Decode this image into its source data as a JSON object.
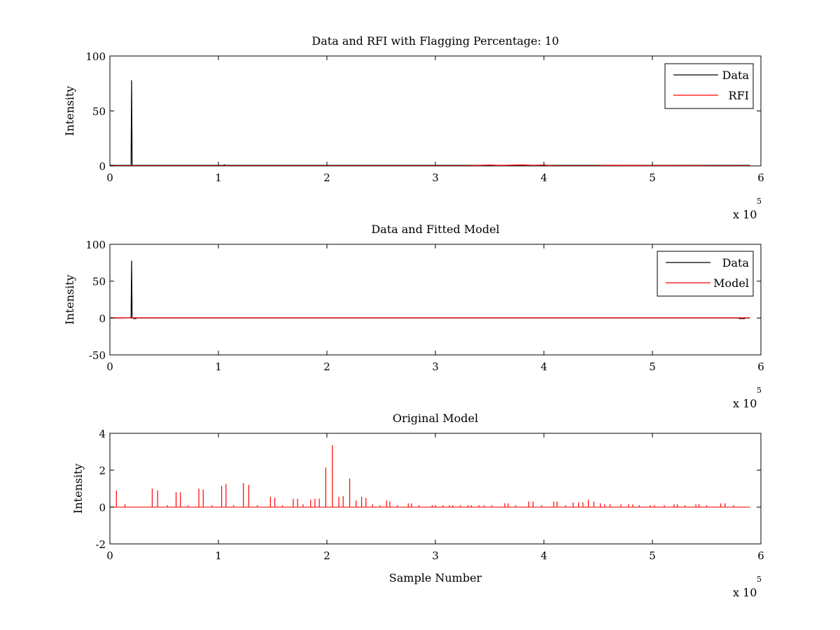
{
  "chart_data": [
    {
      "type": "line",
      "title": "Data and RFI with Flagging Percentage: 10",
      "xlabel": "",
      "ylabel": "Intensity",
      "xlim": [
        0,
        600000
      ],
      "ylim": [
        0,
        100
      ],
      "xticks": [
        0,
        100000,
        200000,
        300000,
        400000,
        500000,
        600000
      ],
      "xtick_labels": [
        "0",
        "1",
        "2",
        "3",
        "4",
        "5",
        "6"
      ],
      "yticks": [
        0,
        50,
        100
      ],
      "ytick_labels": [
        "0",
        "50",
        "100"
      ],
      "x_multiplier": {
        "base": "x 10",
        "exponent": "5"
      },
      "grid": false,
      "legend": "top-right",
      "series": [
        {
          "name": "Data",
          "color": "#000000",
          "x": [
            0,
            19000,
            19500,
            20000,
            20500,
            21000,
            105000,
            105500,
            106000,
            590000
          ],
          "y": [
            0.5,
            0.5,
            0.5,
            78,
            0.5,
            0.5,
            0.5,
            1.0,
            0.5,
            0.5
          ]
        },
        {
          "name": "RFI",
          "color": "#ff0000",
          "x": [
            0,
            330000,
            340000,
            350000,
            360000,
            370000,
            380000,
            390000,
            400000,
            410000,
            450000,
            460000,
            470000,
            590000
          ],
          "y": [
            0,
            0,
            0.5,
            0.8,
            0.4,
            0.7,
            0.9,
            0.5,
            0.8,
            0,
            0,
            0.6,
            0.4,
            0
          ]
        }
      ]
    },
    {
      "type": "line",
      "title": "Data and Fitted Model",
      "xlabel": "",
      "ylabel": "Intensity",
      "xlim": [
        0,
        600000
      ],
      "ylim": [
        -50,
        100
      ],
      "xticks": [
        0,
        100000,
        200000,
        300000,
        400000,
        500000,
        600000
      ],
      "xtick_labels": [
        "0",
        "1",
        "2",
        "3",
        "4",
        "5",
        "6"
      ],
      "yticks": [
        -50,
        0,
        50,
        100
      ],
      "ytick_labels": [
        "-50",
        "0",
        "50",
        "100"
      ],
      "x_multiplier": {
        "base": "x 10",
        "exponent": "5"
      },
      "grid": false,
      "legend": "top-right",
      "series": [
        {
          "name": "Data",
          "color": "#000000",
          "x": [
            0,
            12000,
            12000,
            19000,
            19500,
            20000,
            20500,
            21000,
            22000,
            24000,
            24000,
            580000,
            580000,
            585000,
            585000,
            590000
          ],
          "y": [
            0,
            0,
            0.3,
            0.3,
            0,
            78,
            0,
            0.3,
            -0.8,
            -0.8,
            0,
            0,
            -0.8,
            -0.8,
            0,
            0
          ]
        },
        {
          "name": "Model",
          "color": "#ff0000",
          "x": [
            0,
            590000
          ],
          "y": [
            0.3,
            0.3
          ]
        }
      ]
    },
    {
      "type": "line",
      "title": "Original Model",
      "xlabel": "Sample Number",
      "ylabel": "Intensity",
      "xlim": [
        0,
        600000
      ],
      "ylim": [
        -2,
        4
      ],
      "xticks": [
        0,
        100000,
        200000,
        300000,
        400000,
        500000,
        600000
      ],
      "xtick_labels": [
        "0",
        "1",
        "2",
        "3",
        "4",
        "5",
        "6"
      ],
      "yticks": [
        -2,
        0,
        2,
        4
      ],
      "ytick_labels": [
        "-2",
        "0",
        "2",
        "4"
      ],
      "x_multiplier": {
        "base": "x 10",
        "exponent": "5"
      },
      "grid": false,
      "legend": "none",
      "series": [
        {
          "color": "#ff0000",
          "line_x": [
            0,
            590000
          ],
          "peaks_x": [
            6000,
            14000,
            39000,
            44000,
            53000,
            61000,
            65000,
            72000,
            82000,
            86000,
            94000,
            103000,
            107000,
            114000,
            123000,
            128000,
            136000,
            148000,
            152000,
            159000,
            169000,
            173000,
            178000,
            185000,
            189000,
            193000,
            199000,
            205000,
            211000,
            215000,
            221000,
            227000,
            232000,
            236000,
            242000,
            249000,
            255000,
            258000,
            265000,
            275000,
            278000,
            285000,
            297000,
            300000,
            307000,
            313000,
            316000,
            323000,
            330000,
            333000,
            340000,
            345000,
            352000,
            364000,
            367000,
            374000,
            386000,
            390000,
            398000,
            409000,
            412000,
            420000,
            427000,
            432000,
            436000,
            441000,
            446000,
            452000,
            456000,
            461000,
            471000,
            478000,
            482000,
            488000,
            498000,
            502000,
            511000,
            520000,
            523000,
            530000,
            540000,
            543000,
            550000,
            563000,
            567000,
            575000
          ],
          "peaks_y": [
            0.9,
            0.15,
            1.0,
            0.9,
            0.1,
            0.8,
            0.8,
            0.1,
            1.0,
            0.95,
            0.1,
            1.15,
            1.25,
            0.1,
            1.3,
            1.2,
            0.1,
            0.55,
            0.5,
            0.1,
            0.45,
            0.45,
            0.15,
            0.4,
            0.45,
            0.45,
            2.15,
            3.35,
            0.55,
            0.6,
            1.55,
            0.35,
            0.55,
            0.5,
            0.15,
            0.1,
            0.35,
            0.3,
            0.1,
            0.2,
            0.2,
            0.1,
            0.1,
            0.1,
            0.1,
            0.1,
            0.1,
            0.1,
            0.1,
            0.1,
            0.1,
            0.1,
            0.1,
            0.2,
            0.2,
            0.1,
            0.3,
            0.3,
            0.1,
            0.3,
            0.3,
            0.1,
            0.25,
            0.25,
            0.25,
            0.4,
            0.3,
            0.2,
            0.15,
            0.15,
            0.15,
            0.15,
            0.15,
            0.1,
            0.1,
            0.1,
            0.1,
            0.15,
            0.15,
            0.1,
            0.15,
            0.15,
            0.1,
            0.2,
            0.2,
            0.1
          ]
        }
      ]
    }
  ]
}
